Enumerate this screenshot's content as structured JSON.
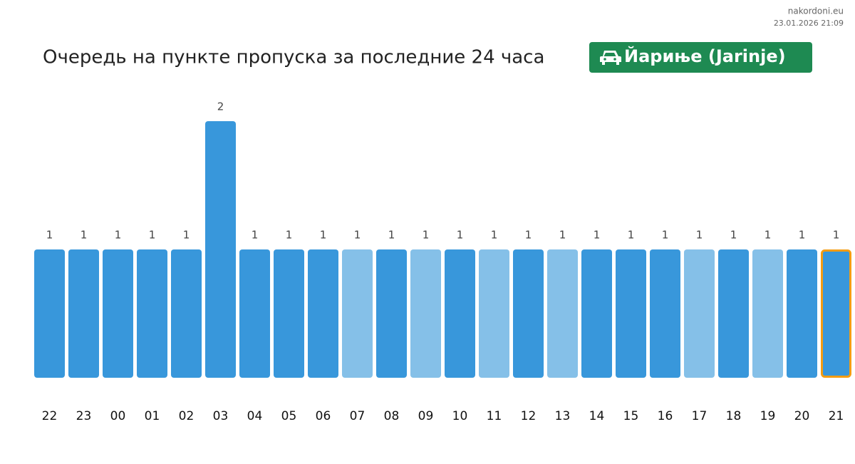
{
  "source": "nakordoni.eu",
  "timestamp": "23.01.2026 21:09",
  "chart_data": {
    "type": "bar",
    "title": "Очередь на пункте пропуска за последние 24 часа",
    "badge": "Йариње (Jarinje)",
    "badge_color": "#1e8a52",
    "categories": [
      "22",
      "23",
      "00",
      "01",
      "02",
      "03",
      "04",
      "05",
      "06",
      "07",
      "08",
      "09",
      "10",
      "11",
      "12",
      "13",
      "14",
      "15",
      "16",
      "17",
      "18",
      "19",
      "20",
      "21"
    ],
    "values": [
      1,
      1,
      1,
      1,
      1,
      2,
      1,
      1,
      1,
      1,
      1,
      1,
      1,
      1,
      1,
      1,
      1,
      1,
      1,
      1,
      1,
      1,
      1,
      1
    ],
    "colors": [
      "#3897db",
      "#3897db",
      "#3897db",
      "#3897db",
      "#3897db",
      "#3897db",
      "#3897db",
      "#3897db",
      "#3897db",
      "#85c0e8",
      "#3897db",
      "#85c0e8",
      "#3897db",
      "#85c0e8",
      "#3897db",
      "#85c0e8",
      "#3897db",
      "#3897db",
      "#3897db",
      "#85c0e8",
      "#3897db",
      "#85c0e8",
      "#3897db",
      "#3897db"
    ],
    "highlight": "21",
    "highlight_color": "#f39c12"
  }
}
